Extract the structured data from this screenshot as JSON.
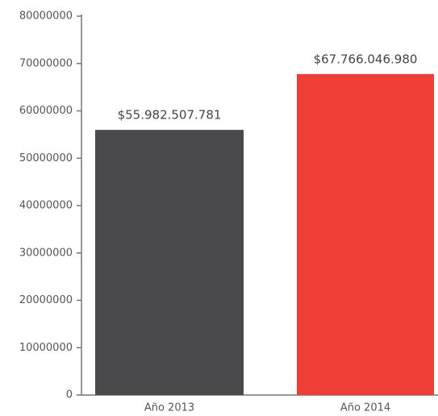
{
  "chart_data": {
    "type": "bar",
    "categories": [
      "Año 2013",
      "Año 2014"
    ],
    "values": [
      55982507.781,
      67766046.98
    ],
    "value_labels": [
      "$55.982.507.781",
      "$67.766.046.980"
    ],
    "colors": [
      "#4a4a4c",
      "#ee3e36"
    ],
    "ylim": [
      0,
      80000000
    ],
    "yticks": [
      0,
      10000000,
      20000000,
      30000000,
      40000000,
      50000000,
      60000000,
      70000000,
      80000000
    ]
  }
}
